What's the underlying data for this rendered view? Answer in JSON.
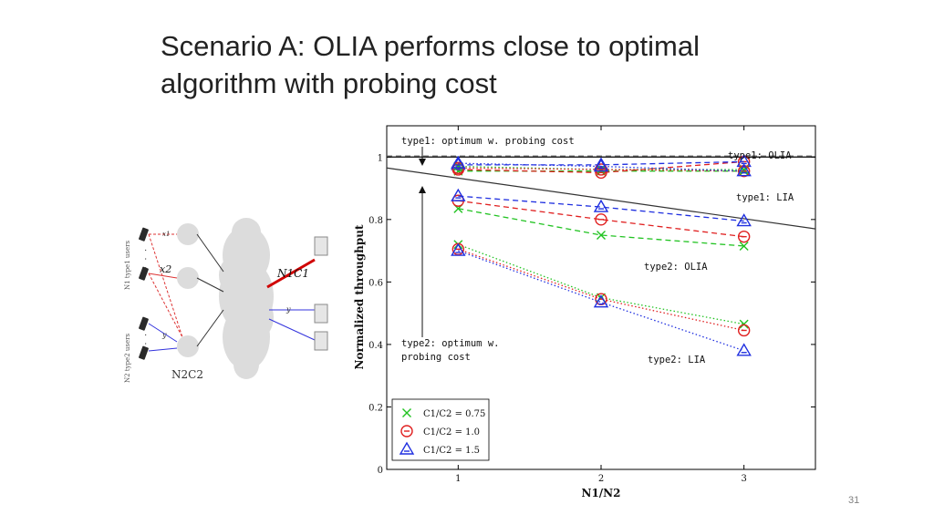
{
  "slide": {
    "title_line1": "Scenario A: OLIA performs close to optimal",
    "title_line2": "algorithm with probing cost",
    "page_number": "31"
  },
  "diagram": {
    "type1_users_label": "N1 type1 users",
    "type2_users_label": "N2 type2 users",
    "x1_label": "x1",
    "x2_label": "x2",
    "y_label_left": "y",
    "y_label_right": "y",
    "n1c1_label": "N1C1",
    "n2c2_label": "N2C2",
    "dots": "· · ·"
  },
  "chart_data": {
    "type": "line",
    "xlabel": "N1/N2",
    "ylabel": "Normalized throughput",
    "x": [
      1,
      2,
      3
    ],
    "xticks": [
      "1",
      "2",
      "3"
    ],
    "yticks": [
      "0",
      "0.2",
      "0.4",
      "0.6",
      "0.8",
      "1"
    ],
    "xlim": [
      0.5,
      3.5
    ],
    "ylim": [
      0,
      1.1
    ],
    "legend": {
      "position": "bottom-left",
      "entries": [
        {
          "label": "C1/C2 = 0.75",
          "color": "#22c322",
          "marker": "x"
        },
        {
          "label": "C1/C2 = 1.0",
          "color": "#e02020",
          "marker": "o"
        },
        {
          "label": "C1/C2 = 1.5",
          "color": "#2030e0",
          "marker": "^"
        }
      ]
    },
    "reference_lines": [
      {
        "name": "type1: optimum w. probing cost",
        "x": [
          0.5,
          3.5
        ],
        "y": [
          1.0,
          1.0
        ],
        "color": "#000000",
        "dash": "solid"
      },
      {
        "name": "type1: optimum",
        "x": [
          0.5,
          3.5
        ],
        "y": [
          1.003,
          1.003
        ],
        "color": "#555555",
        "dash": "dashed"
      },
      {
        "name": "type2: optimum w. probing cost",
        "x": [
          0.5,
          3.5
        ],
        "y": [
          0.965,
          0.77
        ],
        "color": "#333333",
        "dash": "solid"
      }
    ],
    "series": [
      {
        "group": "type1: OLIA",
        "ratio": "C1/C2 = 0.75",
        "color": "#22c322",
        "marker": "x",
        "dash": "dashed",
        "values": [
          0.955,
          0.955,
          0.955
        ]
      },
      {
        "group": "type1: OLIA",
        "ratio": "C1/C2 = 1.0",
        "color": "#e02020",
        "marker": "o",
        "dash": "dashed",
        "values": [
          0.96,
          0.95,
          0.985
        ]
      },
      {
        "group": "type1: OLIA",
        "ratio": "C1/C2 = 1.5",
        "color": "#2030e0",
        "marker": "^",
        "dash": "dashed",
        "values": [
          0.975,
          0.975,
          0.985
        ]
      },
      {
        "group": "type1: LIA",
        "ratio": "C1/C2 = 0.75",
        "color": "#22c322",
        "marker": "x",
        "dash": "dotted",
        "values": [
          0.97,
          0.96,
          0.96
        ]
      },
      {
        "group": "type1: LIA",
        "ratio": "C1/C2 = 1.0",
        "color": "#e02020",
        "marker": "o",
        "dash": "dotted",
        "values": [
          0.965,
          0.96,
          0.955
        ]
      },
      {
        "group": "type1: LIA",
        "ratio": "C1/C2 = 1.5",
        "color": "#2030e0",
        "marker": "^",
        "dash": "dotted",
        "values": [
          0.98,
          0.97,
          0.955
        ]
      },
      {
        "group": "type2: OLIA",
        "ratio": "C1/C2 = 0.75",
        "color": "#22c322",
        "marker": "x",
        "dash": "dashed",
        "values": [
          0.835,
          0.75,
          0.715
        ]
      },
      {
        "group": "type2: OLIA",
        "ratio": "C1/C2 = 1.0",
        "color": "#e02020",
        "marker": "o",
        "dash": "dashed",
        "values": [
          0.86,
          0.8,
          0.745
        ]
      },
      {
        "group": "type2: OLIA",
        "ratio": "C1/C2 = 1.5",
        "color": "#2030e0",
        "marker": "^",
        "dash": "dashed",
        "values": [
          0.875,
          0.84,
          0.795
        ]
      },
      {
        "group": "type2: LIA",
        "ratio": "C1/C2 = 0.75",
        "color": "#22c322",
        "marker": "x",
        "dash": "dotted",
        "values": [
          0.72,
          0.55,
          0.465
        ]
      },
      {
        "group": "type2: LIA",
        "ratio": "C1/C2 = 1.0",
        "color": "#e02020",
        "marker": "o",
        "dash": "dotted",
        "values": [
          0.705,
          0.545,
          0.445
        ]
      },
      {
        "group": "type2: LIA",
        "ratio": "C1/C2 = 1.5",
        "color": "#2030e0",
        "marker": "^",
        "dash": "dotted",
        "values": [
          0.7,
          0.535,
          0.38
        ]
      }
    ],
    "annotations": [
      {
        "text": "type1: optimum w. probing cost"
      },
      {
        "text": "type1: OLIA"
      },
      {
        "text": "type1: LIA"
      },
      {
        "text": "type2: OLIA"
      },
      {
        "text": "type2: LIA"
      },
      {
        "text": "type2: optimum w."
      },
      {
        "text": "probing cost"
      }
    ]
  }
}
